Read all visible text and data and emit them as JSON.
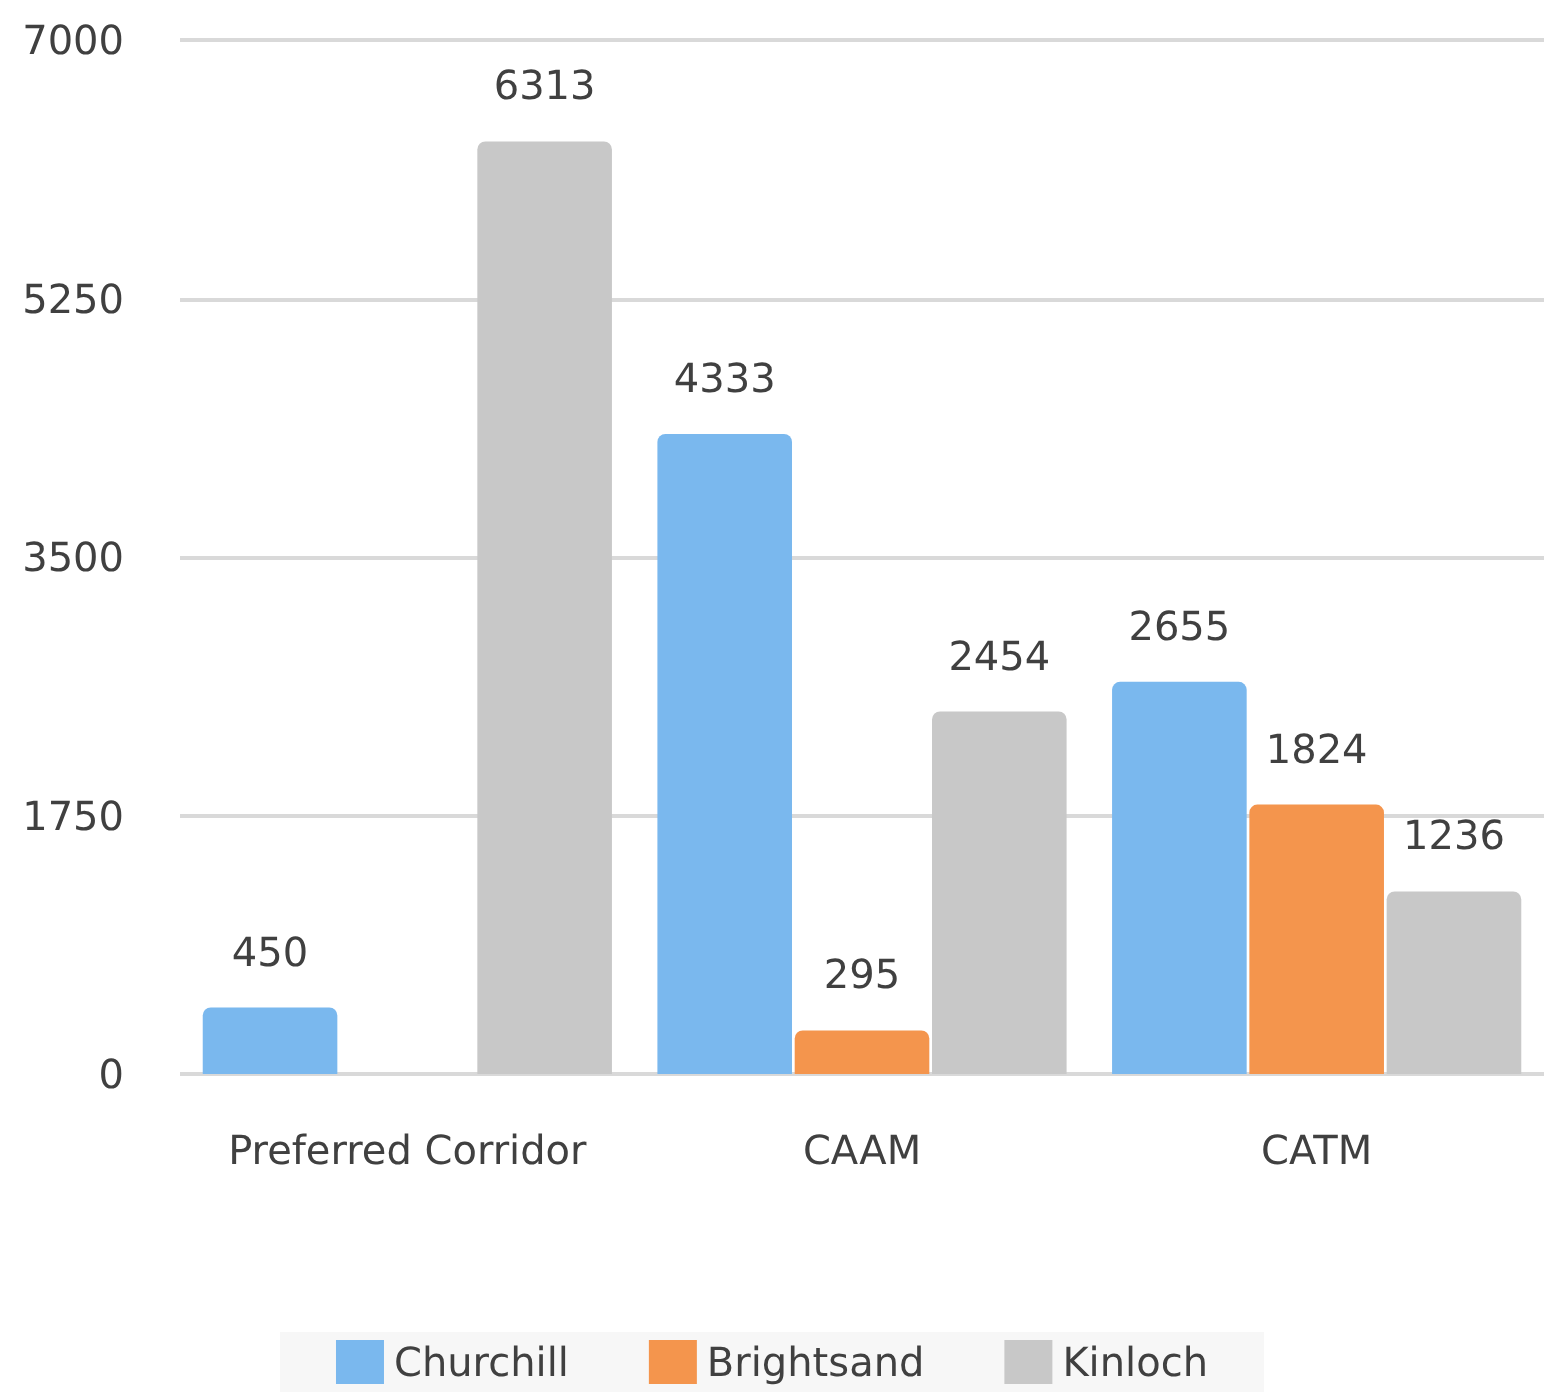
{
  "chart_data": {
    "type": "bar",
    "categories": [
      "Preferred Corridor",
      "CAAM",
      "CATM"
    ],
    "series": [
      {
        "name": "Churchill",
        "color": "#7ab8ee",
        "values": [
          450,
          4333,
          2655
        ]
      },
      {
        "name": "Brightsand",
        "color": "#f4954d",
        "values": [
          null,
          295,
          1824
        ]
      },
      {
        "name": "Kinloch",
        "color": "#c8c8c8",
        "values": [
          6313,
          2454,
          1236
        ]
      }
    ],
    "ylim": [
      0,
      7000
    ],
    "yticks": [
      0,
      1750,
      3500,
      5250,
      7000
    ],
    "grid": "y",
    "legend": "bottom",
    "data_labels": true
  }
}
